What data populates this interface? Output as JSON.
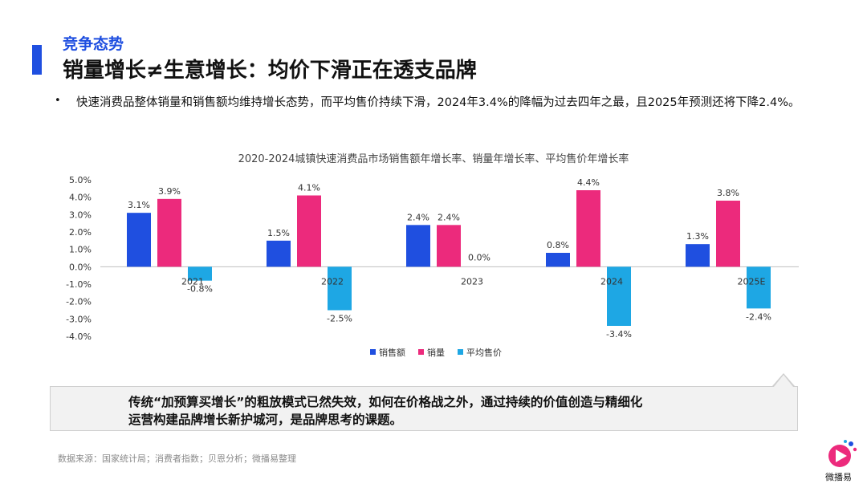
{
  "header": {
    "section": "竞争态势",
    "title": "销量增长≠生意增长：均价下滑正在透支品牌"
  },
  "bullet": {
    "symbol": "•",
    "text": "快速消费品整体销量和销售额均维持增长态势，而平均售价持续下滑，2024年3.4%的降幅为过去四年之最，且2025年预测还将下降2.4%。"
  },
  "chart_data": {
    "type": "bar",
    "title": "2020-2024城镇快速消费品市场销售额年增长率、销量年增长率、平均售价年增长率",
    "categories": [
      "2021",
      "2022",
      "2023",
      "2024",
      "2025E"
    ],
    "series": [
      {
        "name": "销售额",
        "color": "#1f4fe0",
        "values": [
          3.1,
          1.5,
          2.4,
          0.8,
          1.3
        ],
        "labels": [
          "3.1%",
          "1.5%",
          "2.4%",
          "0.8%",
          "1.3%"
        ]
      },
      {
        "name": "销量",
        "color": "#ec2a7c",
        "values": [
          3.9,
          4.1,
          2.4,
          4.4,
          3.8
        ],
        "labels": [
          "3.9%",
          "4.1%",
          "2.4%",
          "4.4%",
          "3.8%"
        ]
      },
      {
        "name": "平均售价",
        "color": "#1ea7e4",
        "values": [
          -0.8,
          -2.5,
          0.0,
          -3.4,
          -2.4
        ],
        "labels": [
          "-0.8%",
          "-2.5%",
          "0.0%",
          "-3.4%",
          "-2.4%"
        ]
      }
    ],
    "ylim": [
      -4.0,
      5.0
    ],
    "yticks": [
      "5.0%",
      "4.0%",
      "3.0%",
      "2.0%",
      "1.0%",
      "0.0%",
      "-1.0%",
      "-2.0%",
      "-3.0%",
      "-4.0%"
    ],
    "grid": false,
    "legend_position": "bottom-center"
  },
  "callout": {
    "line1": "传统“加预算买增长”的粗放模式已然失效，如何在价格战之外，通过持续的价值创造与精细化",
    "line2": "运营构建品牌增长新护城河，是品牌思考的课题。"
  },
  "source": "数据来源：国家统计局；消费者指数；贝恩分析；微播易整理",
  "logo": {
    "text": "微播易"
  }
}
